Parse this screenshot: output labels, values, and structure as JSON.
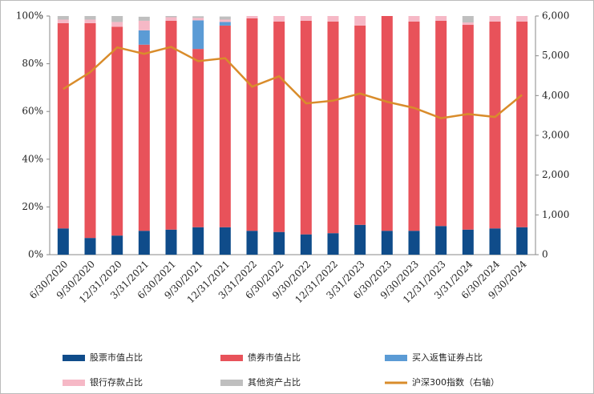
{
  "chart_data": {
    "type": "stacked-bar-line",
    "categories": [
      "6/30/2020",
      "9/30/2020",
      "12/31/2020",
      "3/31/2021",
      "6/30/2021",
      "9/30/2021",
      "12/31/2021",
      "3/31/2022",
      "6/30/2022",
      "9/30/2022",
      "12/31/2022",
      "3/31/2023",
      "6/30/2023",
      "9/30/2023",
      "12/31/2023",
      "3/31/2024",
      "6/30/2024",
      "9/30/2024"
    ],
    "series": [
      {
        "name": "股票市值占比",
        "color": "#0f4c8a",
        "values": [
          11,
          7,
          8,
          10,
          10.5,
          11.5,
          11.5,
          10,
          9.5,
          8.5,
          9,
          12.5,
          10,
          10,
          12,
          10.5,
          11,
          11.5
        ]
      },
      {
        "name": "债券市值占比",
        "color": "#e8525a",
        "values": [
          86,
          90,
          87.5,
          78,
          87.5,
          74.7,
          84.5,
          89,
          88.2,
          89.5,
          88.7,
          83.5,
          90,
          87.7,
          86,
          85.8,
          86.7,
          86.2
        ]
      },
      {
        "name": "买入返售证券占比",
        "color": "#5b9bd5",
        "values": [
          0,
          0,
          0,
          6,
          0,
          12,
          1.5,
          0,
          0,
          0,
          0,
          0,
          0,
          0,
          0,
          0,
          0,
          0
        ]
      },
      {
        "name": "银行存款占比",
        "color": "#f6b8c6",
        "values": [
          1.5,
          1.5,
          2,
          4,
          1.5,
          1,
          1,
          1,
          2.3,
          2,
          2.3,
          4,
          0,
          2.3,
          2,
          1,
          2.3,
          2.3
        ]
      },
      {
        "name": "其他资产占比",
        "color": "#bfbfbf",
        "values": [
          1.5,
          1.5,
          2.5,
          1.7,
          0.5,
          0.7,
          1.3,
          0,
          0,
          0,
          0,
          0,
          0,
          0,
          0,
          2.7,
          0,
          0
        ]
      },
      {
        "name": "沪深300指数（右轴）",
        "color": "#d98c2b",
        "axis": "y2",
        "values": [
          4163,
          4587,
          5211,
          5049,
          5224,
          4866,
          4940,
          4223,
          4485,
          3804,
          3872,
          4051,
          3843,
          3690,
          3431,
          3537,
          3462,
          4017
        ]
      }
    ],
    "ylim": [
      0,
      100
    ],
    "yticks": [
      {
        "value": 0,
        "label": "0%"
      },
      {
        "value": 20,
        "label": "20%"
      },
      {
        "value": 40,
        "label": "40%"
      },
      {
        "value": 60,
        "label": "60%"
      },
      {
        "value": 80,
        "label": "80%"
      },
      {
        "value": 100,
        "label": "100%"
      }
    ],
    "y2lim": [
      0,
      6000
    ],
    "y2ticks": [
      0,
      {
        "value": 1000,
        "label": "1,000"
      },
      {
        "value": 2000,
        "label": "2,000"
      },
      {
        "value": 3000,
        "label": "3,000"
      },
      {
        "value": 4000,
        "label": "4,000"
      },
      {
        "value": 5000,
        "label": "5,000"
      },
      {
        "value": 6000,
        "label": "6,000"
      }
    ]
  }
}
